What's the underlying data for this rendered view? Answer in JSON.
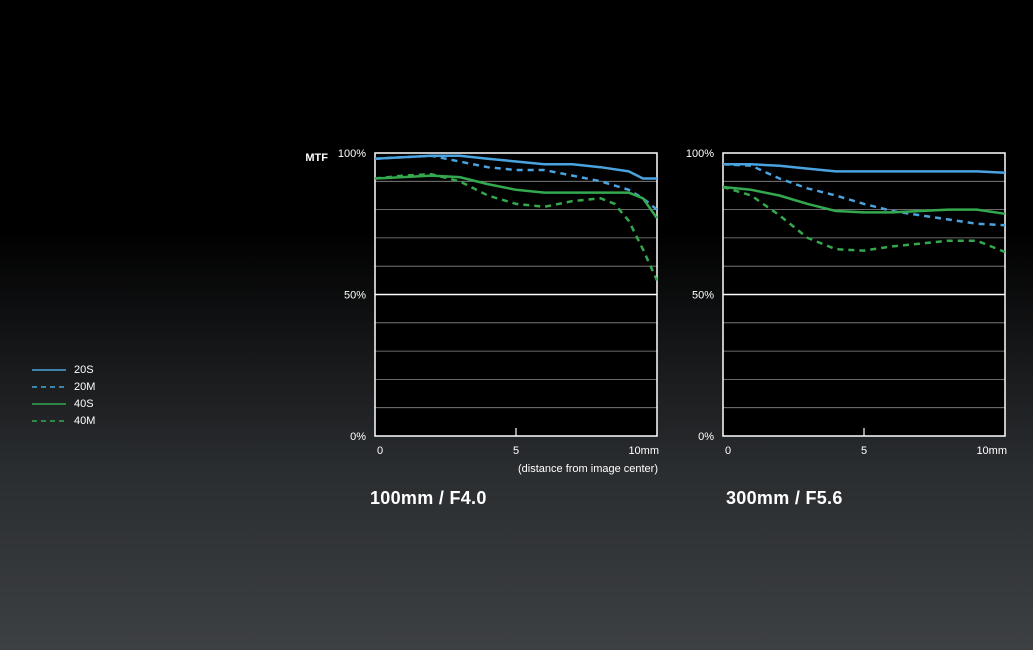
{
  "colors": {
    "blue": "#4aa3df",
    "green": "#34a84e",
    "grid": "#8a8a8a",
    "text": "#ffffff"
  },
  "legend": [
    {
      "label": "20S",
      "color": "#4aa3df",
      "dashed": false
    },
    {
      "label": "20M",
      "color": "#4aa3df",
      "dashed": true
    },
    {
      "label": "40S",
      "color": "#34a84e",
      "dashed": false
    },
    {
      "label": "40M",
      "color": "#34a84e",
      "dashed": true
    }
  ],
  "chart_data": [
    {
      "type": "line",
      "title": "100mm / F4.0",
      "ylabel": "MTF",
      "xlabel": "(distance from image center)",
      "xlim": [
        0,
        10
      ],
      "ylim": [
        0,
        100
      ],
      "x_ticks": [
        "0",
        "5",
        "10mm"
      ],
      "y_ticks": [
        "0%",
        "50%",
        "100%"
      ],
      "grid": true,
      "series": [
        {
          "name": "20S",
          "x": [
            0,
            1,
            2,
            3,
            4,
            5,
            6,
            7,
            8,
            9,
            9.5,
            10
          ],
          "values": [
            98,
            98.5,
            99,
            99,
            98,
            97,
            96,
            96,
            95,
            93.5,
            91,
            91
          ]
        },
        {
          "name": "20M",
          "x": [
            0,
            1,
            2,
            3,
            4,
            5,
            6,
            7,
            8,
            9,
            9.5,
            10
          ],
          "values": [
            98,
            98.5,
            99,
            97,
            95,
            94,
            94,
            92,
            90,
            87,
            84,
            80
          ]
        },
        {
          "name": "40S",
          "x": [
            0,
            1,
            2,
            3,
            4,
            5,
            6,
            7,
            8,
            9,
            9.5,
            10
          ],
          "values": [
            91,
            91.5,
            92,
            91.5,
            89,
            87,
            86,
            86,
            86,
            86,
            84,
            77
          ]
        },
        {
          "name": "40M",
          "x": [
            0,
            1,
            2,
            3,
            4,
            5,
            6,
            7,
            8,
            8.5,
            9,
            9.5,
            10
          ],
          "values": [
            91,
            92,
            92.5,
            90,
            85,
            82,
            81,
            83,
            84,
            82,
            76,
            66,
            55
          ]
        }
      ]
    },
    {
      "type": "line",
      "title": "300mm / F5.6",
      "xlim": [
        0,
        10
      ],
      "ylim": [
        0,
        100
      ],
      "x_ticks": [
        "0",
        "5",
        "10mm"
      ],
      "y_ticks": [
        "0%",
        "50%",
        "100%"
      ],
      "grid": true,
      "series": [
        {
          "name": "20S",
          "x": [
            0,
            1,
            2,
            3,
            4,
            5,
            6,
            7,
            8,
            9,
            10
          ],
          "values": [
            96,
            96,
            95.5,
            94.5,
            93.5,
            93.5,
            93.5,
            93.5,
            93.5,
            93.5,
            93
          ]
        },
        {
          "name": "20M",
          "x": [
            0,
            1,
            2,
            3,
            4,
            5,
            6,
            7,
            8,
            9,
            10
          ],
          "values": [
            96,
            95.5,
            91,
            87.5,
            85,
            82,
            79.5,
            78,
            76.5,
            75,
            74.5
          ]
        },
        {
          "name": "40S",
          "x": [
            0,
            1,
            2,
            3,
            4,
            5,
            6,
            7,
            8,
            9,
            10
          ],
          "values": [
            88,
            87,
            85,
            82,
            79.5,
            79,
            79,
            79.5,
            80,
            80,
            78.5
          ]
        },
        {
          "name": "40M",
          "x": [
            0,
            1,
            2,
            3,
            4,
            5,
            6,
            7,
            8,
            9,
            10
          ],
          "values": [
            88,
            85,
            78,
            70,
            66,
            65.5,
            67,
            68,
            69,
            69,
            65
          ]
        }
      ]
    }
  ]
}
